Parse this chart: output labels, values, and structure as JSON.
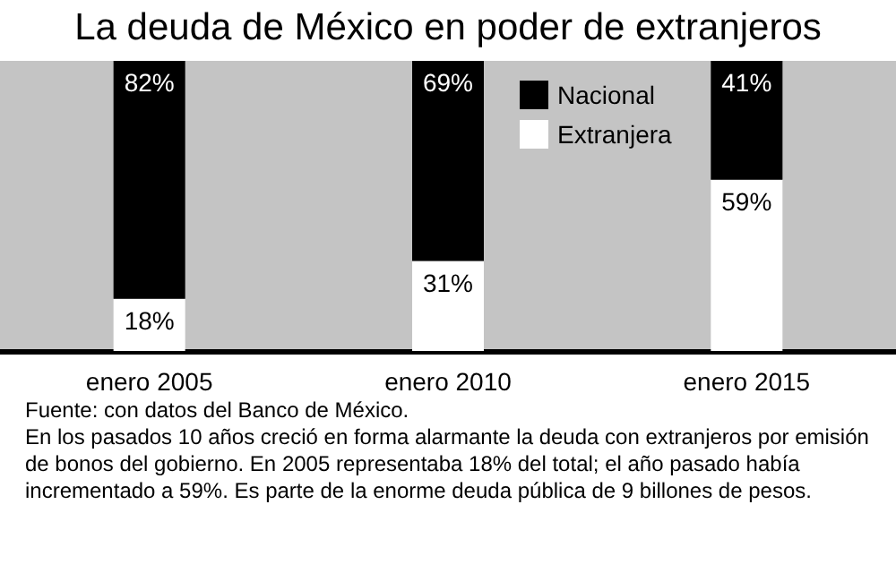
{
  "chart_data": {
    "type": "bar",
    "title": "La deuda de México en poder de extranjeros",
    "categories": [
      "enero 2005",
      "enero 2010",
      "enero 2015"
    ],
    "stacked": true,
    "series": [
      {
        "name": "Extranjera",
        "color": "#ffffff",
        "values": [
          18,
          31,
          59
        ],
        "value_labels": [
          "18%",
          "31%",
          "59%"
        ]
      },
      {
        "name": "Nacional",
        "color": "#000000",
        "values": [
          82,
          69,
          41
        ],
        "value_labels": [
          "82%",
          "69%",
          "41%"
        ]
      }
    ],
    "legend": "top",
    "grid": false,
    "annotations": [
      "Fuente: con datos del Banco de México.",
      "En los pasados 10 años creció en forma alarmante la deuda con extranjeros por emisión de bonos del gobierno. En 2005 representaba 18% del total; el año pasado había incrementado a 59%. Es parte de la enorme deuda pública de 9 billones de pesos."
    ]
  }
}
